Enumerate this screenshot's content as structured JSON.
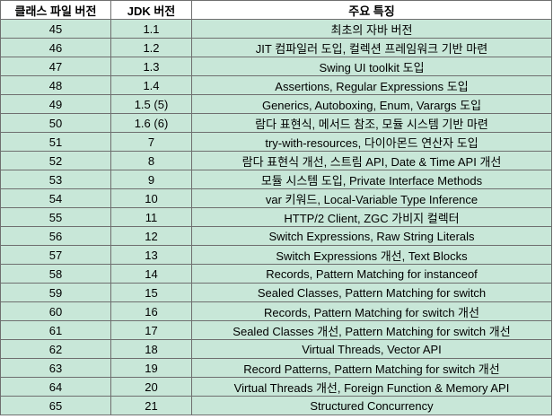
{
  "header": {
    "class_version": "클래스 파일 버전",
    "jdk_version": "JDK 버전",
    "features": "주요 특징"
  },
  "rows": [
    {
      "class_version": "45",
      "jdk_version": "1.1",
      "features": "최초의 자바 버전"
    },
    {
      "class_version": "46",
      "jdk_version": "1.2",
      "features": "JIT 컴파일러 도입, 컬렉션 프레임워크 기반 마련"
    },
    {
      "class_version": "47",
      "jdk_version": "1.3",
      "features": "Swing UI toolkit 도입"
    },
    {
      "class_version": "48",
      "jdk_version": "1.4",
      "features": "Assertions, Regular Expressions 도입"
    },
    {
      "class_version": "49",
      "jdk_version": "1.5 (5)",
      "features": "Generics, Autoboxing, Enum, Varargs 도입"
    },
    {
      "class_version": "50",
      "jdk_version": "1.6 (6)",
      "features": "람다 표현식, 메서드 참조, 모듈 시스템 기반 마련"
    },
    {
      "class_version": "51",
      "jdk_version": "7",
      "features": "try-with-resources, 다이아몬드 연산자 도입"
    },
    {
      "class_version": "52",
      "jdk_version": "8",
      "features": "람다 표현식 개선, 스트림 API, Date & Time API 개선"
    },
    {
      "class_version": "53",
      "jdk_version": "9",
      "features": "모듈 시스템 도입, Private Interface Methods"
    },
    {
      "class_version": "54",
      "jdk_version": "10",
      "features": "var 키워드, Local-Variable Type Inference"
    },
    {
      "class_version": "55",
      "jdk_version": "11",
      "features": "HTTP/2 Client, ZGC 가비지 컬렉터"
    },
    {
      "class_version": "56",
      "jdk_version": "12",
      "features": "Switch Expressions, Raw String Literals"
    },
    {
      "class_version": "57",
      "jdk_version": "13",
      "features": "Switch Expressions 개선, Text Blocks"
    },
    {
      "class_version": "58",
      "jdk_version": "14",
      "features": "Records, Pattern Matching for instanceof"
    },
    {
      "class_version": "59",
      "jdk_version": "15",
      "features": "Sealed Classes, Pattern Matching for switch"
    },
    {
      "class_version": "60",
      "jdk_version": "16",
      "features": "Records, Pattern Matching for switch 개선"
    },
    {
      "class_version": "61",
      "jdk_version": "17",
      "features": "Sealed Classes 개선, Pattern Matching for switch 개선"
    },
    {
      "class_version": "62",
      "jdk_version": "18",
      "features": "Virtual Threads, Vector API"
    },
    {
      "class_version": "63",
      "jdk_version": "19",
      "features": "Record Patterns, Pattern Matching for switch 개선"
    },
    {
      "class_version": "64",
      "jdk_version": "20",
      "features": "Virtual Threads 개선, Foreign Function & Memory API"
    },
    {
      "class_version": "65",
      "jdk_version": "21",
      "features": "Structured Concurrency"
    }
  ],
  "colors": {
    "row_background": "#c8e7d8",
    "header_background": "#ffffff",
    "border": "#6f6f6f"
  }
}
